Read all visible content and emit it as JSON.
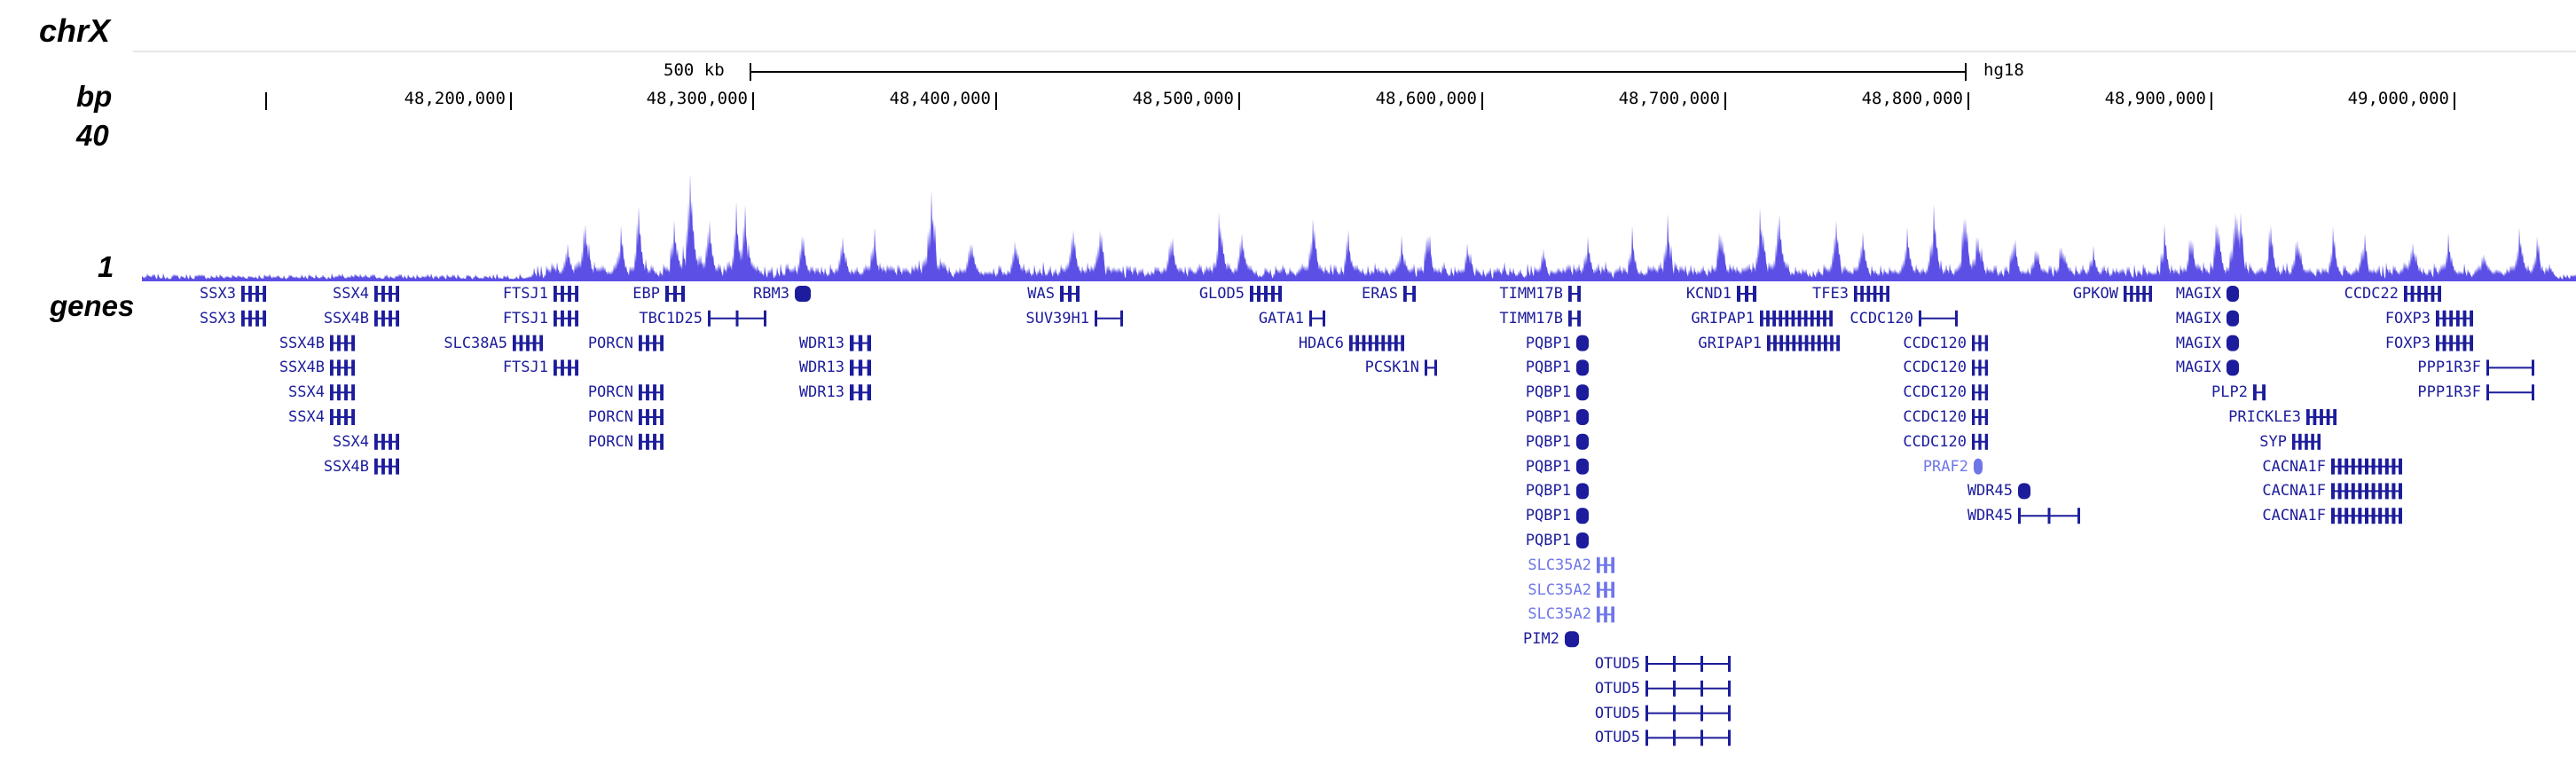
{
  "chrom": "chrX",
  "side_labels": {
    "ruler": "bp",
    "ymax": "40",
    "ymin": "1",
    "genes": "genes"
  },
  "scale_bar": {
    "label": "500 kb",
    "assembly": "hg18"
  },
  "ruler_ticks": [
    "48,200,000",
    "48,300,000",
    "48,400,000",
    "48,500,000",
    "48,600,000",
    "48,700,000",
    "48,800,000",
    "48,900,000",
    "49,000,000"
  ],
  "colors": {
    "track": "#5b4fe6",
    "gene": "#1c1c9c",
    "gene_light": "#6f76e8"
  },
  "genes": [
    {
      "name": "SSX3"
    },
    {
      "name": "SSX3"
    },
    {
      "name": "SSX4B"
    },
    {
      "name": "SSX4B"
    },
    {
      "name": "SSX4"
    },
    {
      "name": "SSX4"
    },
    {
      "name": "SSX4"
    },
    {
      "name": "SSX4B"
    },
    {
      "name": "SSX4"
    },
    {
      "name": "SSX4B"
    },
    {
      "name": "FTSJ1"
    },
    {
      "name": "FTSJ1"
    },
    {
      "name": "SLC38A5"
    },
    {
      "name": "FTSJ1"
    },
    {
      "name": "EBP"
    },
    {
      "name": "TBC1D25"
    },
    {
      "name": "PORCN"
    },
    {
      "name": "PORCN"
    },
    {
      "name": "PORCN"
    },
    {
      "name": "PORCN"
    },
    {
      "name": "RBM3"
    },
    {
      "name": "WDR13"
    },
    {
      "name": "WDR13"
    },
    {
      "name": "WDR13"
    },
    {
      "name": "WAS"
    },
    {
      "name": "SUV39H1"
    },
    {
      "name": "GLOD5"
    },
    {
      "name": "GATA1"
    },
    {
      "name": "HDAC6"
    },
    {
      "name": "ERAS"
    },
    {
      "name": "PCSK1N"
    },
    {
      "name": "TIMM17B"
    },
    {
      "name": "TIMM17B"
    },
    {
      "name": "PQBP1"
    },
    {
      "name": "PQBP1"
    },
    {
      "name": "PQBP1"
    },
    {
      "name": "PQBP1"
    },
    {
      "name": "PQBP1"
    },
    {
      "name": "PQBP1"
    },
    {
      "name": "PQBP1"
    },
    {
      "name": "PQBP1"
    },
    {
      "name": "PQBP1"
    },
    {
      "name": "SLC35A2"
    },
    {
      "name": "SLC35A2"
    },
    {
      "name": "SLC35A2"
    },
    {
      "name": "PIM2"
    },
    {
      "name": "OTUD5"
    },
    {
      "name": "OTUD5"
    },
    {
      "name": "OTUD5"
    },
    {
      "name": "OTUD5"
    },
    {
      "name": "KCND1"
    },
    {
      "name": "GRIPAP1"
    },
    {
      "name": "GRIPAP1"
    },
    {
      "name": "TFE3"
    },
    {
      "name": "CCDC120"
    },
    {
      "name": "CCDC120"
    },
    {
      "name": "CCDC120"
    },
    {
      "name": "CCDC120"
    },
    {
      "name": "CCDC120"
    },
    {
      "name": "CCDC120"
    },
    {
      "name": "PRAF2"
    },
    {
      "name": "WDR45"
    },
    {
      "name": "WDR45"
    },
    {
      "name": "GPKOW"
    },
    {
      "name": "MAGIX"
    },
    {
      "name": "MAGIX"
    },
    {
      "name": "MAGIX"
    },
    {
      "name": "MAGIX"
    },
    {
      "name": "PLP2"
    },
    {
      "name": "PRICKLE3"
    },
    {
      "name": "SYP"
    },
    {
      "name": "CACNA1F"
    },
    {
      "name": "CACNA1F"
    },
    {
      "name": "CACNA1F"
    },
    {
      "name": "CCDC22"
    },
    {
      "name": "FOXP3"
    },
    {
      "name": "FOXP3"
    },
    {
      "name": "PPP1R3F"
    },
    {
      "name": "PPP1R3F"
    }
  ]
}
